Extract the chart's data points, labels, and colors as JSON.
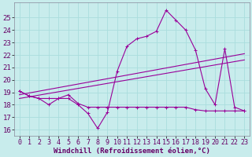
{
  "xlabel": "Windchill (Refroidissement éolien,°C)",
  "bg_color": "#c8ecec",
  "grid_color": "#aadddd",
  "line_color": "#990099",
  "x_ticks": [
    0,
    1,
    2,
    3,
    4,
    5,
    6,
    7,
    8,
    9,
    10,
    11,
    12,
    13,
    14,
    15,
    16,
    17,
    18,
    19,
    20,
    21,
    22,
    23
  ],
  "ylim": [
    15.5,
    26.2
  ],
  "xlim": [
    -0.5,
    23.5
  ],
  "yticks": [
    16,
    17,
    18,
    19,
    20,
    21,
    22,
    23,
    24,
    25
  ],
  "line1_x": [
    0,
    1,
    2,
    3,
    4,
    5,
    6,
    7,
    8,
    9,
    10,
    11,
    12,
    13,
    14,
    15,
    16,
    17,
    18,
    19,
    20,
    21,
    22,
    23
  ],
  "line1_y": [
    19.1,
    18.7,
    18.5,
    18.0,
    18.5,
    18.5,
    18.0,
    17.3,
    16.1,
    17.4,
    20.7,
    22.7,
    23.3,
    23.5,
    23.9,
    25.6,
    24.8,
    24.0,
    22.4,
    19.3,
    18.0,
    22.5,
    17.8,
    17.5
  ],
  "line2_x": [
    0,
    1,
    2,
    3,
    4,
    5,
    6,
    7,
    8,
    9,
    10,
    11,
    12,
    13,
    14,
    15,
    16,
    17,
    18,
    19,
    20,
    21,
    22,
    23
  ],
  "line2_y": [
    19.1,
    18.7,
    18.5,
    18.5,
    18.5,
    18.8,
    18.1,
    17.8,
    17.8,
    17.8,
    17.8,
    17.8,
    17.8,
    17.8,
    17.8,
    17.8,
    17.8,
    17.8,
    17.6,
    17.5,
    17.5,
    17.5,
    17.5,
    17.5
  ],
  "line3_x": [
    0,
    23
  ],
  "line3_y": [
    18.8,
    22.1
  ],
  "line4_x": [
    0,
    23
  ],
  "line4_y": [
    18.5,
    21.6
  ],
  "marker_size": 3.5,
  "line_width": 0.8,
  "font_size": 6.5,
  "tick_color": "#660066"
}
